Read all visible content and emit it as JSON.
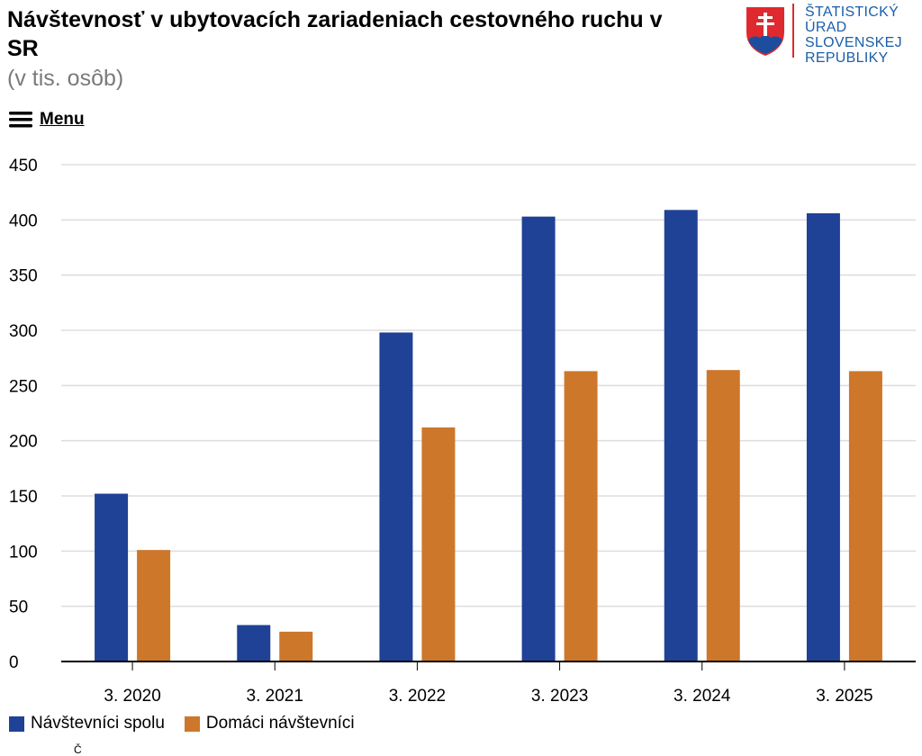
{
  "header": {
    "title": "Návštevnosť v ubytovacích zariadeniach cestovného ruchu v SR",
    "subtitle": "(v tis. osôb)"
  },
  "logo": {
    "lines": [
      "ŠTATISTICKÝ",
      "ÚRAD",
      "SLOVENSKEJ",
      "REPUBLIKY"
    ],
    "color": "#1a5ea8",
    "shield_red": "#e0292e",
    "shield_blue": "#1d4e9e"
  },
  "menu": {
    "label": "Menu",
    "icon": "hamburger-icon"
  },
  "footer_fragment": "Č",
  "chart_data": {
    "type": "bar",
    "categories": [
      "3. 2020",
      "3. 2021",
      "3. 2022",
      "3. 2023",
      "3. 2024",
      "3. 2025"
    ],
    "series": [
      {
        "name": "Návštevníci spolu",
        "color": "#1f4196",
        "values": [
          152,
          33,
          298,
          403,
          409,
          406
        ]
      },
      {
        "name": "Domáci návštevníci",
        "color": "#cd772b",
        "values": [
          101,
          27,
          212,
          263,
          264,
          263
        ]
      }
    ],
    "title": "Návštevnosť v ubytovacích zariadeniach cestovného ruchu v SR",
    "subtitle": "(v tis. osôb)",
    "ylim": [
      0,
      450
    ],
    "yticks": [
      0,
      50,
      100,
      150,
      200,
      250,
      300,
      350,
      400,
      450
    ],
    "grid": true,
    "legend": "bottom-left"
  }
}
